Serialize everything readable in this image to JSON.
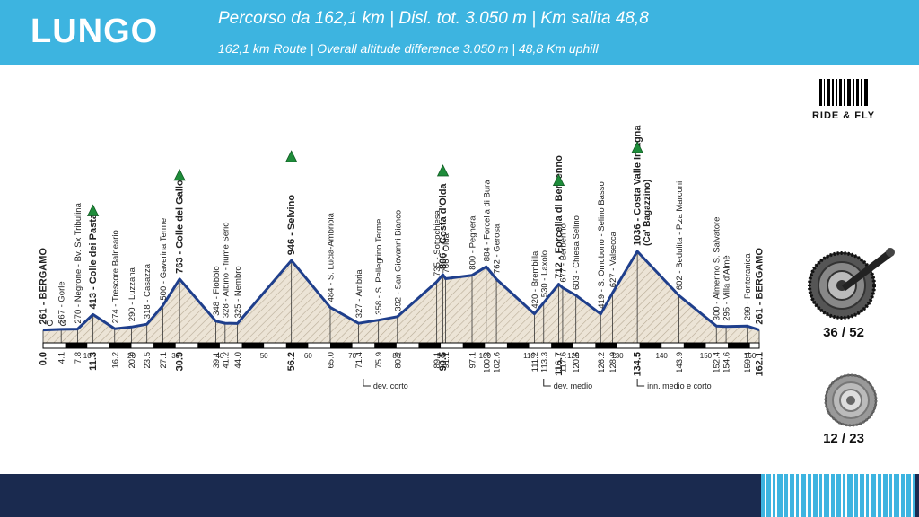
{
  "header": {
    "route_name": "LUNGO",
    "stats_it": "Percorso da 162,1 km | Disl. tot. 3.050 m | Km salita 48,8",
    "stats_en": "162,1 km Route | Overall altitude difference 3.050 m | 48,8 Km uphill"
  },
  "brand": {
    "label": "RIDE & FLY"
  },
  "gearing": {
    "chainring": "36 / 52",
    "cassette": "12 / 23"
  },
  "colors": {
    "header_bg": "#3db4e0",
    "footer_bg": "#1a2a4f",
    "profile_line": "#1f3f8c",
    "climb_marker": "#1e8c3a"
  },
  "chart_data": {
    "type": "area",
    "xlim": [
      0,
      162.1
    ],
    "x_ticks": [
      "10",
      "20",
      "30",
      "40",
      "50",
      "60",
      "70",
      "80",
      "90",
      "100",
      "110",
      "120",
      "130",
      "140",
      "150",
      "160"
    ],
    "profile": [
      [
        0.0,
        261
      ],
      [
        4.1,
        267
      ],
      [
        7.8,
        270
      ],
      [
        11.3,
        413
      ],
      [
        16.2,
        274
      ],
      [
        20.0,
        290
      ],
      [
        23.5,
        318
      ],
      [
        27.1,
        500
      ],
      [
        30.9,
        763
      ],
      [
        39.1,
        348
      ],
      [
        41.2,
        328
      ],
      [
        44.0,
        325
      ],
      [
        56.2,
        946
      ],
      [
        65.0,
        484
      ],
      [
        71.4,
        327
      ],
      [
        75.9,
        358
      ],
      [
        80.2,
        392
      ],
      [
        89.1,
        735
      ],
      [
        90.5,
        806
      ],
      [
        91.1,
        766
      ],
      [
        97.1,
        800
      ],
      [
        100.3,
        884
      ],
      [
        102.6,
        762
      ],
      [
        111.2,
        420
      ],
      [
        113.3,
        530
      ],
      [
        116.7,
        712
      ],
      [
        117.6,
        677
      ],
      [
        120.6,
        603
      ],
      [
        126.2,
        419
      ],
      [
        128.9,
        627
      ],
      [
        134.5,
        1036
      ],
      [
        143.9,
        602
      ],
      [
        152.4,
        300
      ],
      [
        154.6,
        295
      ],
      [
        159.4,
        299
      ],
      [
        162.1,
        261
      ]
    ],
    "waypoints": [
      {
        "km": "0.0",
        "label": "261 - BERGAMO",
        "bold": true
      },
      {
        "km": "4.1",
        "label": "267 - Gorle",
        "bold": false
      },
      {
        "km": "7.8",
        "label": "270 - Negrone - Bv. Sx Tribulina",
        "bold": false
      },
      {
        "km": "11.3",
        "label": "413 - Colle dei Pasta",
        "bold": true
      },
      {
        "km": "16.2",
        "label": "274 - Trescore Balneario",
        "bold": false
      },
      {
        "km": "20.0",
        "label": "290 - Luzzana",
        "bold": false
      },
      {
        "km": "23.5",
        "label": "318 - Casazza",
        "bold": false
      },
      {
        "km": "27.1",
        "label": "500 - Gaverina Terme",
        "bold": false
      },
      {
        "km": "30.9",
        "label": "763 - Colle del Gallo",
        "bold": true
      },
      {
        "km": "39.1",
        "label": "348 - Fiobbio",
        "bold": false
      },
      {
        "km": "41.2",
        "label": "328 - Albino - fiume Serio",
        "bold": false
      },
      {
        "km": "44.0",
        "label": "325 - Nembro",
        "bold": false
      },
      {
        "km": "56.2",
        "label": "946 - Selvino",
        "bold": true
      },
      {
        "km": "65.0",
        "label": "484 - S. Lucia-Ambriola",
        "bold": false
      },
      {
        "km": "71.4",
        "label": "327 - Ambria",
        "bold": false
      },
      {
        "km": "75.9",
        "label": "358 - S. Pellegrino Terme",
        "bold": false
      },
      {
        "km": "80.2",
        "label": "392 - San Giovanni Bianco",
        "bold": false
      },
      {
        "km": "89.1",
        "label": "735 - Sottochiesa",
        "bold": false
      },
      {
        "km": "90.5",
        "label": "806 - Costa d'Olda",
        "bold": true
      },
      {
        "km": "91.1",
        "label": "766 - Olda",
        "bold": false
      },
      {
        "km": "97.1",
        "label": "800 - Peghera",
        "bold": false
      },
      {
        "km": "100.3",
        "label": "884 - Forcella di Bura",
        "bold": false
      },
      {
        "km": "102.6",
        "label": "762 - Gerosa",
        "bold": false
      },
      {
        "km": "111.2",
        "label": "420 - Brembilla",
        "bold": false
      },
      {
        "km": "113.3",
        "label": "530 - Laxolo",
        "bold": false
      },
      {
        "km": "116.7",
        "label": "712 - Forcella di Berbenno",
        "bold": true
      },
      {
        "km": "117.6",
        "label": "677 - Berbenno",
        "bold": false
      },
      {
        "km": "120.6",
        "label": "603 - Chiesa Selino",
        "bold": false
      },
      {
        "km": "126.2",
        "label": "419 - S. Omobono - Selino Basso",
        "bold": false
      },
      {
        "km": "128.9",
        "label": "627 - Valsecca",
        "bold": false
      },
      {
        "km": "134.5",
        "label": "1036 - Costa Valle Imagna",
        "sublabel": "(Ca' Bagazzino)",
        "bold": true
      },
      {
        "km": "143.9",
        "label": "602 - Bedulita - P.za Marconi",
        "bold": false
      },
      {
        "km": "152.4",
        "label": "300 - Almenno S. Salvatore",
        "bold": false
      },
      {
        "km": "154.6",
        "label": "295 - Villa d'Almè",
        "bold": false
      },
      {
        "km": "159.4",
        "label": "299 - Ponteranica",
        "bold": false
      },
      {
        "km": "162.1",
        "label": "261 - BERGAMO",
        "bold": true
      }
    ],
    "climb_markers": [
      11.3,
      30.9,
      56.2,
      90.5,
      116.7,
      134.5
    ],
    "deviations": [
      {
        "km": 72.5,
        "label": "dev. corto"
      },
      {
        "km": 113.3,
        "label": "dev. medio"
      },
      {
        "km": 134.5,
        "label": "inn. medio e corto"
      }
    ]
  }
}
